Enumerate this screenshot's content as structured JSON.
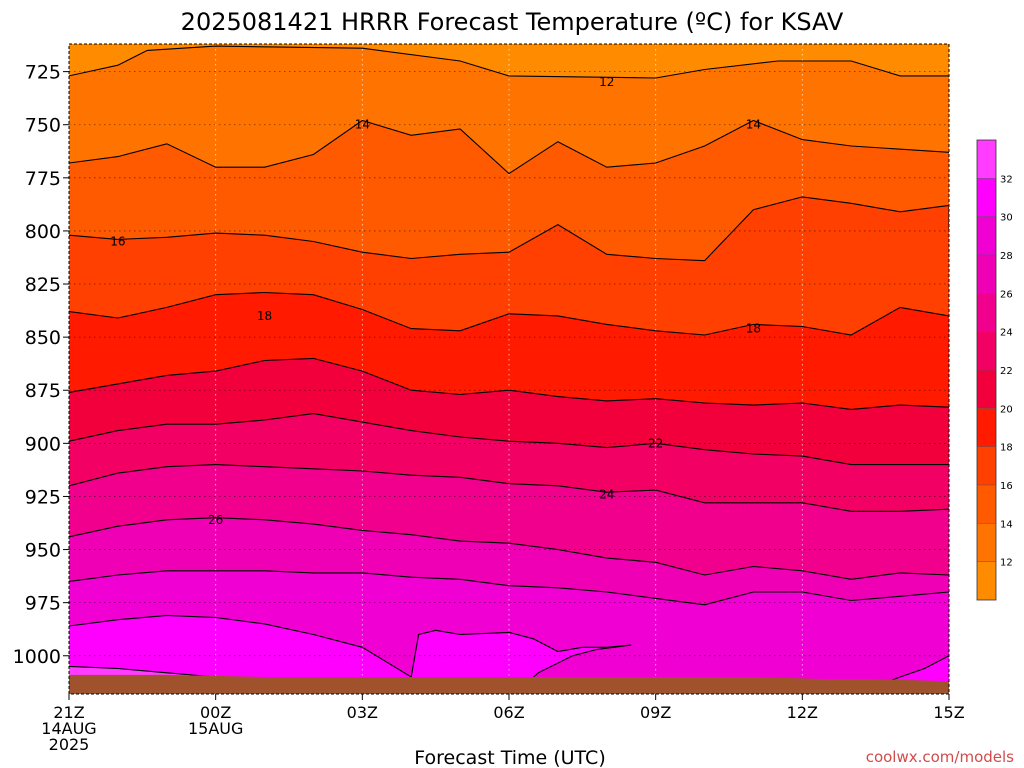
{
  "chart_data": {
    "type": "heatmap",
    "title": "2025081421 HRRR Forecast Temperature (ºC) for KSAV",
    "xlabel": "Forecast Time (UTC)",
    "credit": "coolwx.com/models",
    "x_ticks": [
      {
        "hour": 0,
        "line1": "21Z",
        "line2": "14AUG",
        "line3": "2025"
      },
      {
        "hour": 3,
        "line1": "00Z",
        "line2": "15AUG",
        "line3": ""
      },
      {
        "hour": 6,
        "line1": "03Z",
        "line2": "",
        "line3": ""
      },
      {
        "hour": 9,
        "line1": "06Z",
        "line2": "",
        "line3": ""
      },
      {
        "hour": 12,
        "line1": "09Z",
        "line2": "",
        "line3": ""
      },
      {
        "hour": 15,
        "line1": "12Z",
        "line2": "",
        "line3": ""
      },
      {
        "hour": 18,
        "line1": "15Z",
        "line2": "",
        "line3": ""
      }
    ],
    "xlim": [
      0,
      18
    ],
    "y_ticks": [
      725,
      750,
      775,
      800,
      825,
      850,
      875,
      900,
      925,
      950,
      975,
      1000
    ],
    "y_unit": "hPa",
    "ylim": [
      712,
      1018
    ],
    "colorbar": {
      "levels": [
        12,
        14,
        16,
        18,
        20,
        22,
        24,
        26,
        28,
        30,
        32
      ],
      "range": [
        10,
        34
      ],
      "colors": [
        "#ff8c00",
        "#ff7300",
        "#ff5a00",
        "#ff4000",
        "#ff1a00",
        "#f2003c",
        "#f20064",
        "#f0008c",
        "#f000b4",
        "#f000d2",
        "#ff00ff",
        "#ff3cff"
      ]
    },
    "surface_color": "#a0522d",
    "contour_labels": [
      {
        "text": "12",
        "hour": 11,
        "pressure": 730
      },
      {
        "text": "14",
        "hour": 6,
        "pressure": 750
      },
      {
        "text": "14",
        "hour": 14,
        "pressure": 750
      },
      {
        "text": "16",
        "hour": 1,
        "pressure": 805
      },
      {
        "text": "18",
        "hour": 4,
        "pressure": 840
      },
      {
        "text": "18",
        "hour": 14,
        "pressure": 846
      },
      {
        "text": "22",
        "hour": 12,
        "pressure": 900
      },
      {
        "text": "24",
        "hour": 11,
        "pressure": 924
      },
      {
        "text": "26",
        "hour": 3,
        "pressure": 936
      }
    ],
    "isotherms": [
      {
        "level": 12,
        "points": [
          [
            0,
            727
          ],
          [
            1,
            722
          ],
          [
            1.6,
            715
          ],
          [
            3,
            713
          ],
          [
            6,
            714
          ],
          [
            8,
            720
          ],
          [
            9,
            727
          ],
          [
            12,
            728
          ],
          [
            13,
            724
          ],
          [
            14.5,
            720
          ],
          [
            16,
            720
          ],
          [
            17,
            727
          ],
          [
            18,
            727
          ]
        ]
      },
      {
        "level": 14,
        "points": [
          [
            0,
            768
          ],
          [
            1,
            765
          ],
          [
            2,
            759
          ],
          [
            3,
            770
          ],
          [
            4,
            770
          ],
          [
            5,
            764
          ],
          [
            6,
            748
          ],
          [
            7,
            755
          ],
          [
            8,
            752
          ],
          [
            9,
            773
          ],
          [
            10,
            758
          ],
          [
            11,
            770
          ],
          [
            12,
            768
          ],
          [
            13,
            760
          ],
          [
            14,
            748
          ],
          [
            15,
            757
          ],
          [
            16,
            760
          ],
          [
            18,
            763
          ]
        ]
      },
      {
        "level": 16,
        "points": [
          [
            0,
            802
          ],
          [
            1,
            804
          ],
          [
            2,
            803
          ],
          [
            3,
            801
          ],
          [
            4,
            802
          ],
          [
            5,
            805
          ],
          [
            6,
            810
          ],
          [
            7,
            813
          ],
          [
            8,
            811
          ],
          [
            9,
            810
          ],
          [
            10,
            797
          ],
          [
            11,
            811
          ],
          [
            12,
            813
          ],
          [
            13,
            814
          ],
          [
            14,
            790
          ],
          [
            15,
            784
          ],
          [
            16,
            787
          ],
          [
            17,
            791
          ],
          [
            18,
            788
          ],
          [
            18,
            799
          ]
        ]
      },
      {
        "level": 18,
        "points": [
          [
            0,
            838
          ],
          [
            1,
            841
          ],
          [
            2,
            836
          ],
          [
            3,
            830
          ],
          [
            4,
            829
          ],
          [
            5,
            830
          ],
          [
            6,
            837
          ],
          [
            7,
            846
          ],
          [
            8,
            847
          ],
          [
            9,
            839
          ],
          [
            10,
            840
          ],
          [
            11,
            844
          ],
          [
            12,
            847
          ],
          [
            13,
            849
          ],
          [
            14,
            844
          ],
          [
            15,
            845
          ],
          [
            16,
            849
          ],
          [
            17,
            836
          ],
          [
            18,
            840
          ]
        ]
      },
      {
        "level": 20,
        "points": [
          [
            0,
            876
          ],
          [
            1,
            872
          ],
          [
            2,
            868
          ],
          [
            3,
            866
          ],
          [
            4,
            861
          ],
          [
            5,
            860
          ],
          [
            6,
            866
          ],
          [
            7,
            875
          ],
          [
            8,
            877
          ],
          [
            9,
            875
          ],
          [
            10,
            878
          ],
          [
            11,
            880
          ],
          [
            12,
            879
          ],
          [
            13,
            881
          ],
          [
            14,
            882
          ],
          [
            15,
            881
          ],
          [
            16,
            884
          ],
          [
            17,
            882
          ],
          [
            18,
            883
          ]
        ]
      },
      {
        "level": 22,
        "points": [
          [
            0,
            899
          ],
          [
            1,
            894
          ],
          [
            2,
            891
          ],
          [
            3,
            891
          ],
          [
            4,
            889
          ],
          [
            5,
            886
          ],
          [
            6,
            890
          ],
          [
            7,
            894
          ],
          [
            8,
            897
          ],
          [
            9,
            899
          ],
          [
            10,
            900
          ],
          [
            11,
            902
          ],
          [
            12,
            900
          ],
          [
            13,
            903
          ],
          [
            14,
            905
          ],
          [
            15,
            906
          ],
          [
            16,
            910
          ],
          [
            17,
            910
          ],
          [
            18,
            910
          ]
        ]
      },
      {
        "level": 24,
        "points": [
          [
            0,
            920
          ],
          [
            1,
            914
          ],
          [
            2,
            911
          ],
          [
            3,
            910
          ],
          [
            4,
            911
          ],
          [
            5,
            912
          ],
          [
            6,
            913
          ],
          [
            7,
            915
          ],
          [
            8,
            916
          ],
          [
            9,
            919
          ],
          [
            10,
            920
          ],
          [
            11,
            923
          ],
          [
            12,
            922
          ],
          [
            13,
            928
          ],
          [
            14,
            928
          ],
          [
            15,
            928
          ],
          [
            16,
            932
          ],
          [
            17,
            932
          ],
          [
            18,
            931
          ]
        ]
      },
      {
        "level": 26,
        "points": [
          [
            0,
            944
          ],
          [
            1,
            939
          ],
          [
            2,
            936
          ],
          [
            3,
            935
          ],
          [
            4,
            936
          ],
          [
            5,
            938
          ],
          [
            6,
            941
          ],
          [
            7,
            943
          ],
          [
            8,
            946
          ],
          [
            9,
            947
          ],
          [
            10,
            950
          ],
          [
            11,
            954
          ],
          [
            12,
            956
          ],
          [
            13,
            962
          ],
          [
            14,
            958
          ],
          [
            15,
            960
          ],
          [
            16,
            964
          ],
          [
            17,
            961
          ],
          [
            18,
            962
          ]
        ]
      },
      {
        "level": 28,
        "points": [
          [
            0,
            965
          ],
          [
            1,
            962
          ],
          [
            2,
            960
          ],
          [
            3,
            960
          ],
          [
            4,
            960
          ],
          [
            5,
            961
          ],
          [
            6,
            961
          ],
          [
            7,
            963
          ],
          [
            8,
            964
          ],
          [
            9,
            967
          ],
          [
            10,
            968
          ],
          [
            11,
            970
          ],
          [
            12,
            973
          ],
          [
            13,
            976
          ],
          [
            14,
            970
          ],
          [
            15,
            970
          ],
          [
            16,
            974
          ],
          [
            17,
            972
          ],
          [
            18,
            970
          ]
        ]
      },
      {
        "level": 30,
        "points": [
          [
            0,
            986
          ],
          [
            1,
            983
          ],
          [
            2,
            981
          ],
          [
            3,
            982
          ],
          [
            4,
            985
          ],
          [
            5,
            990
          ],
          [
            6,
            996
          ],
          [
            7,
            1010
          ],
          [
            7.15,
            990
          ],
          [
            7.5,
            988
          ],
          [
            8,
            990
          ],
          [
            9,
            989
          ],
          [
            9.5,
            992
          ],
          [
            10,
            998
          ],
          [
            10.5,
            996
          ],
          [
            11,
            996
          ],
          [
            11.5,
            995
          ],
          [
            10.8,
            997
          ],
          [
            10.3,
            1000
          ],
          [
            9.6,
            1008
          ],
          [
            9.2,
            1016
          ]
        ]
      },
      {
        "level": 32,
        "points": [
          [
            0,
            1005
          ],
          [
            1,
            1006
          ],
          [
            2,
            1008
          ],
          [
            3,
            1010
          ],
          [
            4,
            1011
          ],
          [
            5,
            1015
          ]
        ]
      },
      {
        "level": 30,
        "points": [
          [
            16.3,
            1016
          ],
          [
            17,
            1010
          ],
          [
            17.5,
            1006
          ],
          [
            18,
            1000
          ]
        ]
      }
    ],
    "surface_profile": [
      [
        0,
        1009
      ],
      [
        2,
        1009
      ],
      [
        4,
        1010
      ],
      [
        6,
        1010
      ],
      [
        9,
        1010
      ],
      [
        12,
        1010
      ],
      [
        14,
        1010
      ],
      [
        15.5,
        1011
      ],
      [
        16.5,
        1011
      ],
      [
        18,
        1012
      ]
    ]
  }
}
